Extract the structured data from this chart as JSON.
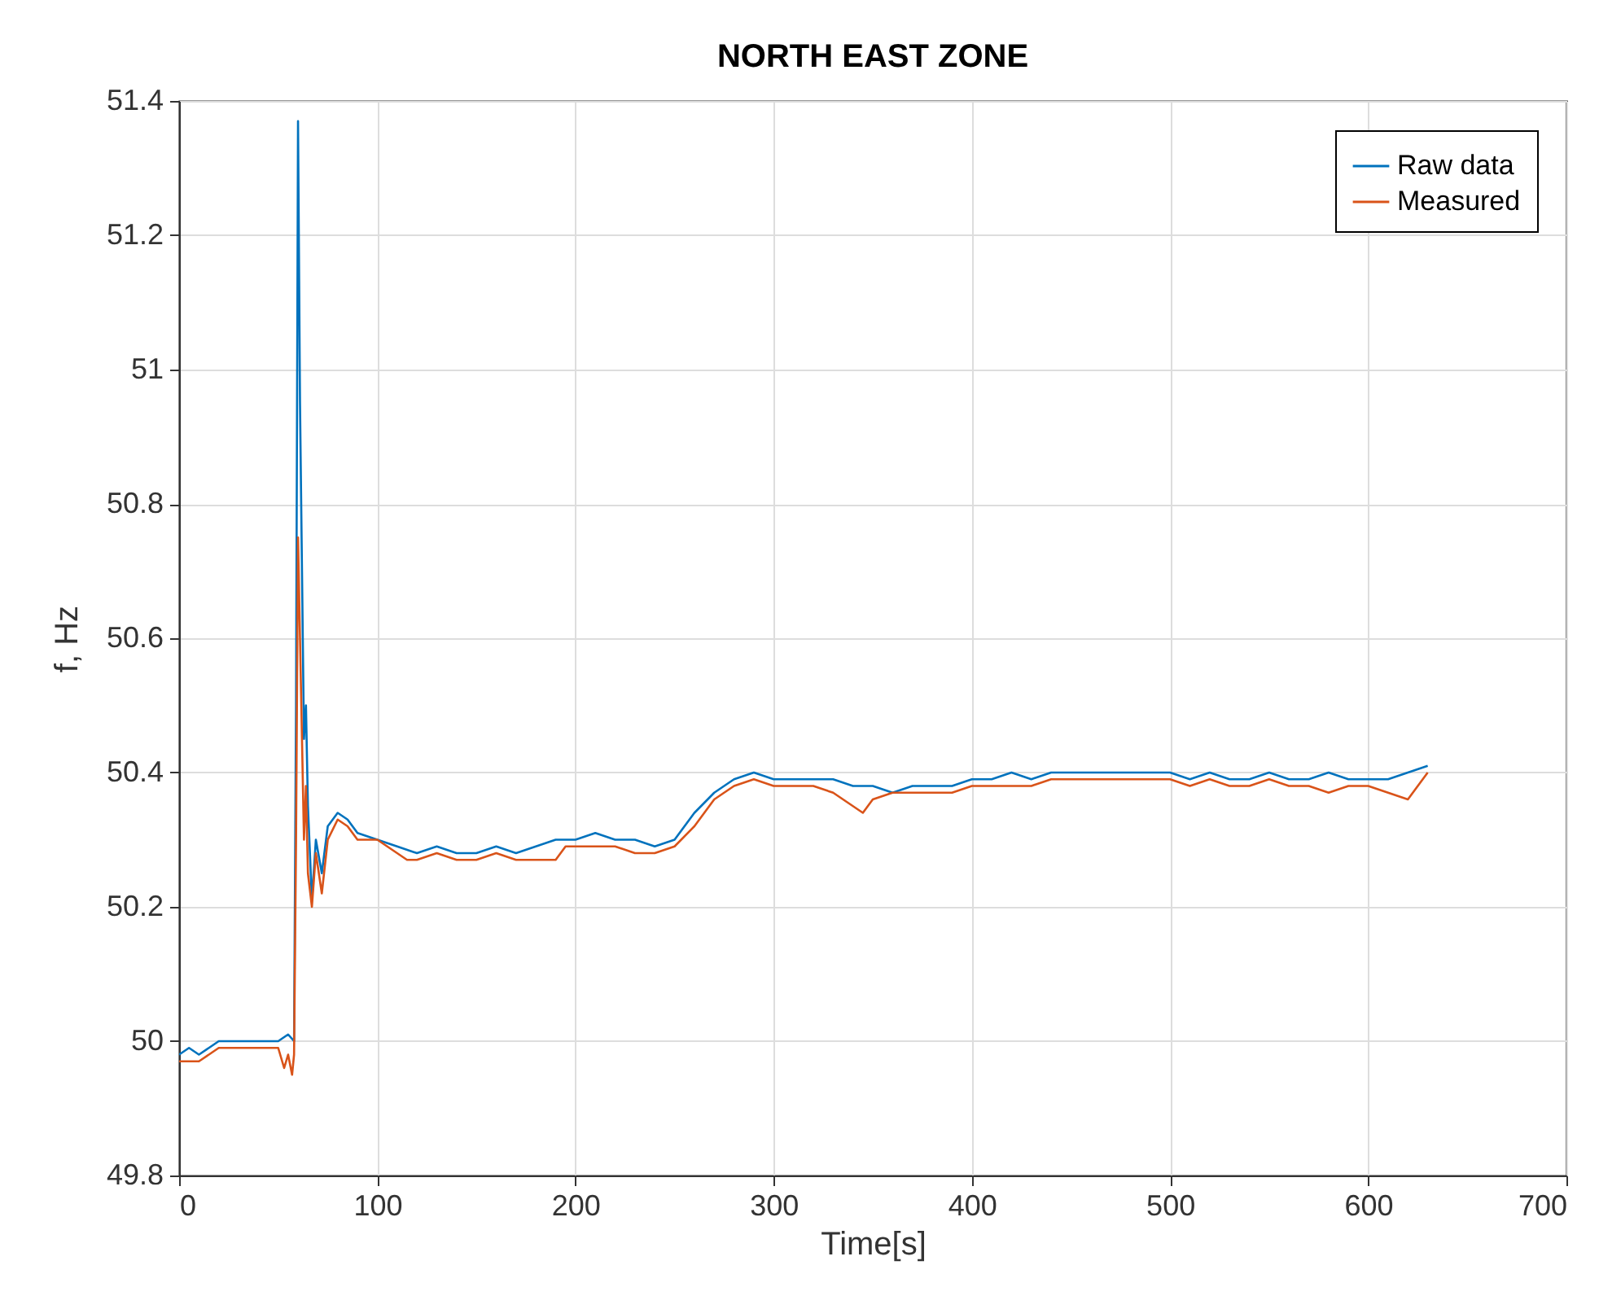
{
  "chart_data": {
    "type": "line",
    "title": "NORTH EAST ZONE",
    "xlabel": "Time[s]",
    "ylabel": "f, Hz",
    "xlim": [
      0,
      700
    ],
    "ylim": [
      49.8,
      51.4
    ],
    "xticks": [
      0,
      100,
      200,
      300,
      400,
      500,
      600,
      700
    ],
    "yticks": [
      49.8,
      50,
      50.2,
      50.4,
      50.6,
      50.8,
      51,
      51.2,
      51.4
    ],
    "grid": true,
    "legend": "top right",
    "series": [
      {
        "name": "Raw data",
        "color": "#0072bd",
        "x": [
          0,
          5,
          10,
          20,
          30,
          40,
          50,
          55,
          58,
          59,
          60,
          61,
          62,
          63,
          64,
          65,
          67,
          69,
          72,
          75,
          80,
          85,
          90,
          100,
          110,
          120,
          130,
          140,
          150,
          160,
          170,
          180,
          190,
          200,
          210,
          220,
          230,
          240,
          250,
          260,
          270,
          280,
          290,
          300,
          310,
          320,
          330,
          340,
          350,
          360,
          370,
          380,
          390,
          400,
          410,
          420,
          430,
          440,
          450,
          460,
          470,
          480,
          490,
          500,
          510,
          520,
          530,
          540,
          550,
          560,
          570,
          580,
          590,
          600,
          610,
          620,
          630
        ],
        "values": [
          49.98,
          49.99,
          49.98,
          50.0,
          50.0,
          50.0,
          50.0,
          50.01,
          50.0,
          50.5,
          51.37,
          50.95,
          50.7,
          50.45,
          50.5,
          50.35,
          50.21,
          50.3,
          50.25,
          50.32,
          50.34,
          50.33,
          50.31,
          50.3,
          50.29,
          50.28,
          50.29,
          50.28,
          50.28,
          50.29,
          50.28,
          50.29,
          50.3,
          50.3,
          50.31,
          50.3,
          50.3,
          50.29,
          50.3,
          50.34,
          50.37,
          50.39,
          50.4,
          50.39,
          50.39,
          50.39,
          50.39,
          50.38,
          50.38,
          50.37,
          50.38,
          50.38,
          50.38,
          50.39,
          50.39,
          50.4,
          50.39,
          50.4,
          50.4,
          50.4,
          50.4,
          50.4,
          50.4,
          50.4,
          50.39,
          50.4,
          50.39,
          50.39,
          50.4,
          50.39,
          50.39,
          50.4,
          50.39,
          50.39,
          50.39,
          50.4,
          50.41
        ]
      },
      {
        "name": "Measured",
        "color": "#d95319",
        "x": [
          0,
          10,
          20,
          50,
          53,
          55,
          57,
          58,
          59,
          60,
          61,
          62,
          63,
          64,
          65,
          67,
          69,
          72,
          75,
          80,
          85,
          90,
          100,
          110,
          115,
          120,
          130,
          140,
          150,
          160,
          170,
          180,
          190,
          195,
          200,
          210,
          220,
          230,
          240,
          250,
          260,
          270,
          280,
          290,
          300,
          310,
          320,
          330,
          340,
          345,
          350,
          360,
          370,
          380,
          390,
          400,
          410,
          420,
          430,
          440,
          450,
          460,
          470,
          480,
          490,
          500,
          510,
          520,
          530,
          540,
          550,
          560,
          570,
          580,
          590,
          600,
          610,
          620,
          630
        ],
        "values": [
          49.97,
          49.97,
          49.99,
          49.99,
          49.96,
          49.98,
          49.95,
          49.98,
          50.3,
          50.75,
          50.6,
          50.45,
          50.3,
          50.38,
          50.25,
          50.2,
          50.28,
          50.22,
          50.3,
          50.33,
          50.32,
          50.3,
          50.3,
          50.28,
          50.27,
          50.27,
          50.28,
          50.27,
          50.27,
          50.28,
          50.27,
          50.27,
          50.27,
          50.29,
          50.29,
          50.29,
          50.29,
          50.28,
          50.28,
          50.29,
          50.32,
          50.36,
          50.38,
          50.39,
          50.38,
          50.38,
          50.38,
          50.37,
          50.35,
          50.34,
          50.36,
          50.37,
          50.37,
          50.37,
          50.37,
          50.38,
          50.38,
          50.38,
          50.38,
          50.39,
          50.39,
          50.39,
          50.39,
          50.39,
          50.39,
          50.39,
          50.38,
          50.39,
          50.38,
          50.38,
          50.39,
          50.38,
          50.38,
          50.37,
          50.38,
          50.38,
          50.37,
          50.36,
          50.4
        ]
      }
    ]
  }
}
